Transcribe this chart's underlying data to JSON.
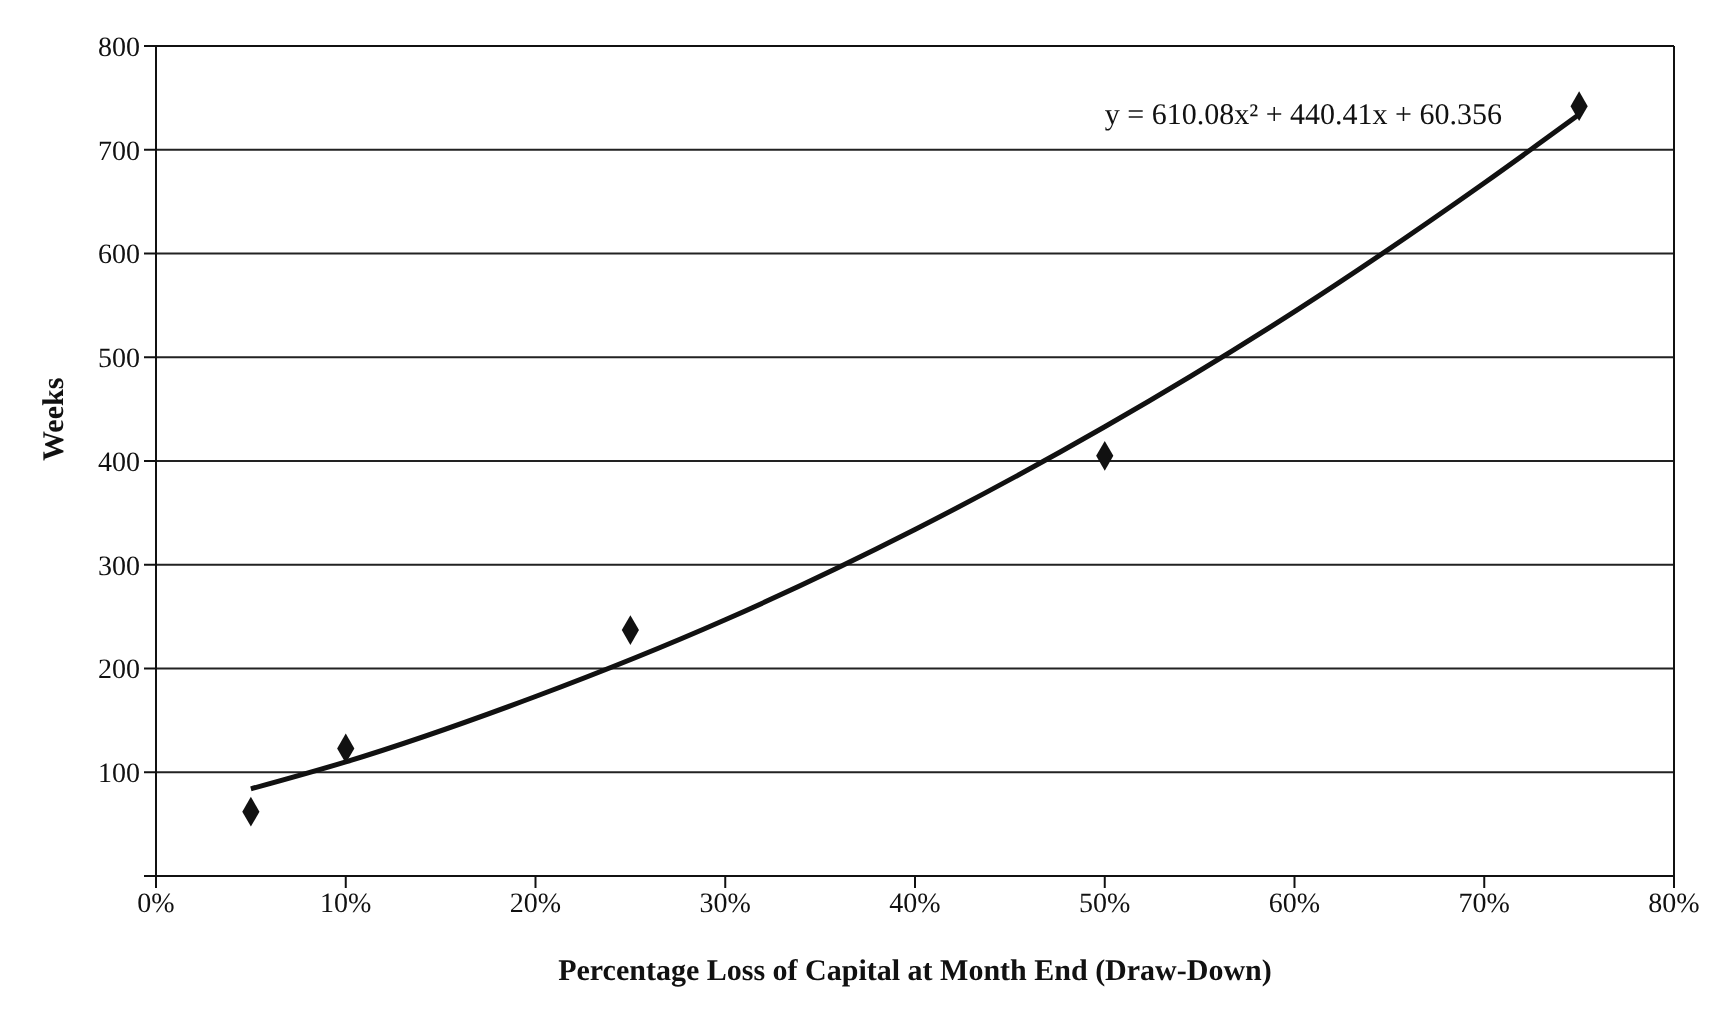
{
  "chart_data": {
    "type": "scatter",
    "xlabel": "Percentage Loss of Capital at Month End (Draw-Down)",
    "ylabel": "Weeks",
    "series": [
      {
        "color": "#111111",
        "marker": "diamond",
        "x": [
          5,
          10,
          25,
          50,
          75
        ],
        "values": [
          62,
          123,
          237,
          405,
          742
        ]
      },
      {
        "type": "line",
        "color": "#111111",
        "marker": "none",
        "x": [
          5,
          10,
          20,
          30,
          40,
          50,
          60,
          70,
          75
        ],
        "values": [
          84,
          110,
          173,
          247,
          334,
          433,
          544,
          668,
          734
        ]
      }
    ],
    "xlim": [
      0,
      80
    ],
    "xticks": [
      {
        "value": 0,
        "label": "0%"
      },
      {
        "value": 10,
        "label": "10%"
      },
      {
        "value": 20,
        "label": "20%"
      },
      {
        "value": 30,
        "label": "30%"
      },
      {
        "value": 40,
        "label": "40%"
      },
      {
        "value": 50,
        "label": "50%"
      },
      {
        "value": 60,
        "label": "60%"
      },
      {
        "value": 70,
        "label": "70%"
      },
      {
        "value": 80,
        "label": "80%"
      }
    ],
    "ylim": [
      0,
      800
    ],
    "yticks": [
      {
        "value": 0,
        "label": null
      },
      100,
      200,
      300,
      400,
      500,
      600,
      700,
      800
    ],
    "grid": "y",
    "legend": false,
    "annotations": [
      "y = 610.08x² + 440.41x + 60.356"
    ]
  }
}
